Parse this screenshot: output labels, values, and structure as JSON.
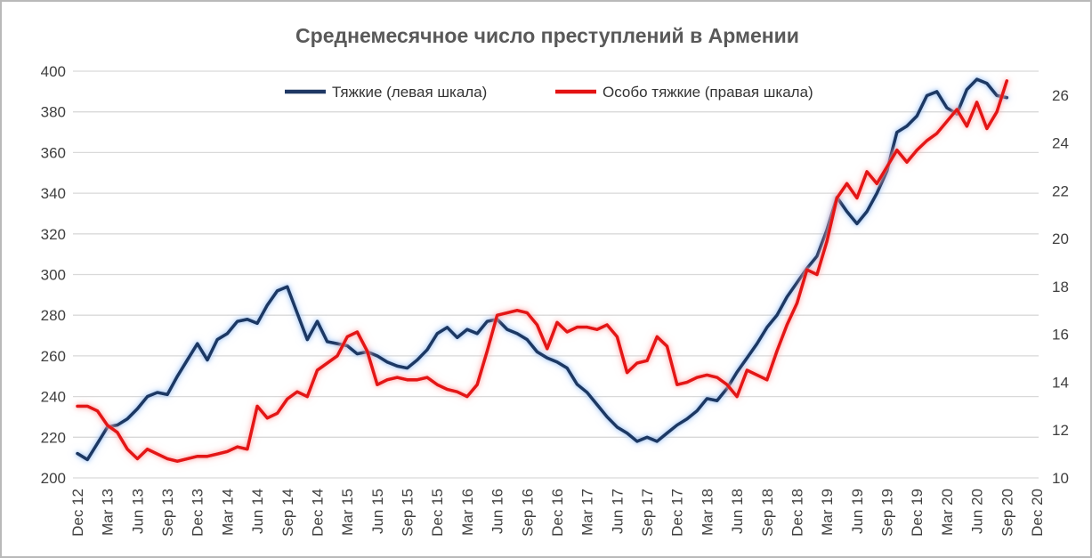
{
  "title": "Среднемесячное число преступлений в Армении",
  "legend": {
    "serious_label": "Тяжкие (левая шкала)",
    "especially_serious_label": "Особо тяжкие (правая шкала)"
  },
  "colors": {
    "serious_line": "#1f3864",
    "serious_glow": "#9dc3f5",
    "especially_serious_line": "#e31212",
    "especially_serious_glow": "#ffabab",
    "gridline": "#d9d9d9",
    "tick_text": "#404040",
    "title_text": "#595959"
  },
  "chart_data": {
    "type": "line",
    "frequency": "monthly",
    "x_start": "Dec 2012",
    "x_end": "Sep 2020",
    "title": "Среднемесячное число преступлений в Армении",
    "grid": true,
    "legend_position": "top",
    "x_tick_labels": [
      "Dec 12",
      "Mar 13",
      "Jun 13",
      "Sep 13",
      "Dec 13",
      "Mar 14",
      "Jun 14",
      "Sep 14",
      "Dec 14",
      "Mar 15",
      "Jun 15",
      "Sep 15",
      "Dec 15",
      "Mar 16",
      "Jun 16",
      "Sep 16",
      "Dec 16",
      "Mar 17",
      "Jun 17",
      "Sep 17",
      "Dec 17",
      "Mar 18",
      "Jun 18",
      "Sep 18",
      "Dec 18",
      "Mar 19",
      "Jun 19",
      "Sep 19",
      "Dec 19",
      "Mar 20",
      "Jun 20",
      "Sep 20",
      "Dec 20"
    ],
    "months_per_x_tick": 3,
    "left_axis": {
      "min": 200,
      "max": 400,
      "ticks": [
        200,
        220,
        240,
        260,
        280,
        300,
        320,
        340,
        360,
        380,
        400
      ]
    },
    "right_axis": {
      "min": 10,
      "max": 27,
      "ticks": [
        10,
        12,
        14,
        16,
        18,
        20,
        22,
        24,
        26
      ]
    },
    "series": [
      {
        "name": "Тяжкие (левая шкала)",
        "axis": "left",
        "color": "#1f3864",
        "glow": "#9dc3f5",
        "values": [
          212,
          209,
          217,
          225,
          226,
          229,
          234,
          240,
          242,
          241,
          250,
          258,
          266,
          258,
          268,
          271,
          277,
          278,
          276,
          285,
          292,
          294,
          281,
          268,
          277,
          267,
          266,
          265,
          261,
          262,
          260,
          257,
          255,
          254,
          258,
          263,
          271,
          274,
          269,
          273,
          271,
          277,
          278,
          273,
          271,
          268,
          262,
          259,
          257,
          254,
          246,
          242,
          236,
          230,
          225,
          222,
          218,
          220,
          218,
          222,
          226,
          229,
          233,
          239,
          238,
          244,
          252,
          259,
          266,
          274,
          280,
          289,
          296,
          303,
          309,
          322,
          338,
          331,
          325,
          331,
          340,
          351,
          370,
          373,
          378,
          388,
          390,
          382,
          379,
          391,
          396,
          394,
          388,
          387
        ]
      },
      {
        "name": "Особо тяжкие (правая шкала)",
        "axis": "right",
        "color": "#e31212",
        "glow": "#ffabab",
        "values": [
          13.0,
          13.0,
          12.8,
          12.2,
          11.9,
          11.2,
          10.8,
          11.2,
          11.0,
          10.8,
          10.7,
          10.8,
          10.9,
          10.9,
          11.0,
          11.1,
          11.3,
          11.2,
          13.0,
          12.5,
          12.7,
          13.3,
          13.6,
          13.4,
          14.5,
          14.8,
          15.1,
          15.9,
          16.1,
          15.3,
          13.9,
          14.1,
          14.2,
          14.1,
          14.1,
          14.2,
          13.9,
          13.7,
          13.6,
          13.4,
          13.9,
          15.3,
          16.8,
          16.9,
          17.0,
          16.9,
          16.4,
          15.4,
          16.5,
          16.1,
          16.3,
          16.3,
          16.2,
          16.4,
          15.9,
          14.4,
          14.8,
          14.9,
          15.9,
          15.5,
          13.9,
          14.0,
          14.2,
          14.3,
          14.2,
          13.9,
          13.4,
          14.5,
          14.3,
          14.1,
          15.3,
          16.4,
          17.3,
          18.7,
          18.5,
          19.9,
          21.7,
          22.3,
          21.7,
          22.8,
          22.3,
          23.0,
          23.7,
          23.2,
          23.7,
          24.1,
          24.4,
          24.9,
          25.4,
          24.7,
          25.7,
          24.6,
          25.3,
          26.6
        ]
      }
    ]
  }
}
